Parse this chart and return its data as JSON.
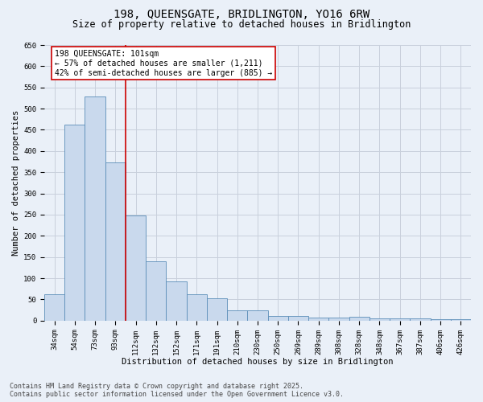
{
  "title_line1": "198, QUEENSGATE, BRIDLINGTON, YO16 6RW",
  "title_line2": "Size of property relative to detached houses in Bridlington",
  "xlabel": "Distribution of detached houses by size in Bridlington",
  "ylabel": "Number of detached properties",
  "categories": [
    "34sqm",
    "54sqm",
    "73sqm",
    "93sqm",
    "112sqm",
    "132sqm",
    "152sqm",
    "171sqm",
    "191sqm",
    "210sqm",
    "230sqm",
    "250sqm",
    "269sqm",
    "289sqm",
    "308sqm",
    "328sqm",
    "348sqm",
    "367sqm",
    "387sqm",
    "406sqm",
    "426sqm"
  ],
  "values": [
    62,
    463,
    528,
    373,
    248,
    140,
    93,
    62,
    53,
    25,
    25,
    11,
    11,
    7,
    8,
    10,
    5,
    5,
    5,
    3,
    3
  ],
  "bar_color": "#c9d9ed",
  "bar_edgecolor": "#5b8db8",
  "grid_color": "#c8d0dc",
  "background_color": "#eaf0f8",
  "annotation_line1": "198 QUEENSGATE: 101sqm",
  "annotation_line2": "← 57% of detached houses are smaller (1,211)",
  "annotation_line3": "42% of semi-detached houses are larger (885) →",
  "annotation_box_color": "#ffffff",
  "annotation_border_color": "#cc0000",
  "ylim": [
    0,
    650
  ],
  "yticks": [
    0,
    50,
    100,
    150,
    200,
    250,
    300,
    350,
    400,
    450,
    500,
    550,
    600,
    650
  ],
  "footer_line1": "Contains HM Land Registry data © Crown copyright and database right 2025.",
  "footer_line2": "Contains public sector information licensed under the Open Government Licence v3.0.",
  "title_fontsize": 10,
  "subtitle_fontsize": 8.5,
  "axis_label_fontsize": 7.5,
  "tick_fontsize": 6.5,
  "annotation_fontsize": 7,
  "footer_fontsize": 6
}
